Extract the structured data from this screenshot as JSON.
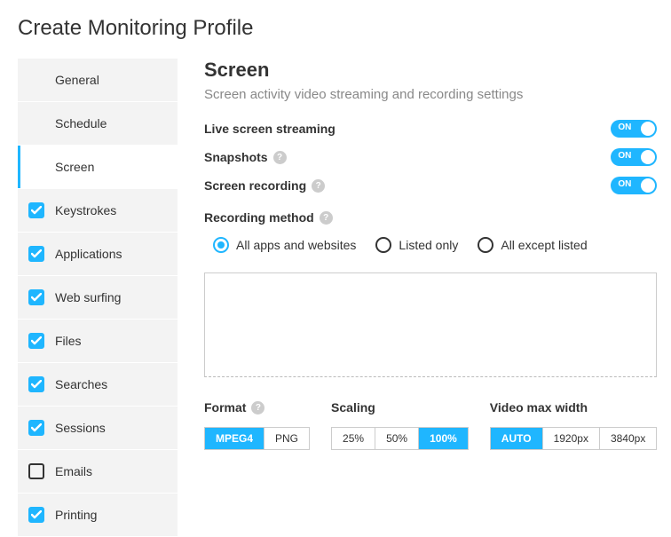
{
  "page_title": "Create Monitoring Profile",
  "sidebar": {
    "items": [
      {
        "label": "General",
        "checkbox": false,
        "checked": false,
        "active": false
      },
      {
        "label": "Schedule",
        "checkbox": false,
        "checked": false,
        "active": false
      },
      {
        "label": "Screen",
        "checkbox": false,
        "checked": false,
        "active": true
      },
      {
        "label": "Keystrokes",
        "checkbox": true,
        "checked": true,
        "active": false
      },
      {
        "label": "Applications",
        "checkbox": true,
        "checked": true,
        "active": false
      },
      {
        "label": "Web surfing",
        "checkbox": true,
        "checked": true,
        "active": false
      },
      {
        "label": "Files",
        "checkbox": true,
        "checked": true,
        "active": false
      },
      {
        "label": "Searches",
        "checkbox": true,
        "checked": true,
        "active": false
      },
      {
        "label": "Sessions",
        "checkbox": true,
        "checked": true,
        "active": false
      },
      {
        "label": "Emails",
        "checkbox": true,
        "checked": false,
        "active": false
      },
      {
        "label": "Printing",
        "checkbox": true,
        "checked": true,
        "active": false
      }
    ]
  },
  "main": {
    "title": "Screen",
    "description": "Screen activity video streaming and recording settings",
    "toggles": [
      {
        "label": "Live screen streaming",
        "help": false,
        "on": true,
        "on_text": "ON"
      },
      {
        "label": "Snapshots",
        "help": true,
        "on": true,
        "on_text": "ON"
      },
      {
        "label": "Screen recording",
        "help": true,
        "on": true,
        "on_text": "ON"
      }
    ],
    "recording_method": {
      "label": "Recording method",
      "help": true,
      "options": [
        {
          "label": "All apps and websites",
          "selected": true
        },
        {
          "label": "Listed only",
          "selected": false
        },
        {
          "label": "All except listed",
          "selected": false
        }
      ]
    },
    "controls": {
      "format": {
        "label": "Format",
        "help": true,
        "options": [
          {
            "label": "MPEG4",
            "selected": true
          },
          {
            "label": "PNG",
            "selected": false
          }
        ]
      },
      "scaling": {
        "label": "Scaling",
        "help": false,
        "options": [
          {
            "label": "25%",
            "selected": false
          },
          {
            "label": "50%",
            "selected": false
          },
          {
            "label": "100%",
            "selected": true
          }
        ]
      },
      "video_max_width": {
        "label": "Video max width",
        "help": false,
        "options": [
          {
            "label": "AUTO",
            "selected": true
          },
          {
            "label": "1920px",
            "selected": false
          },
          {
            "label": "3840px",
            "selected": false
          }
        ]
      }
    }
  },
  "help_glyph": "?",
  "colors": {
    "accent": "#1fb6ff",
    "sidebar_bg": "#f3f3f3",
    "text_muted": "#888888"
  }
}
